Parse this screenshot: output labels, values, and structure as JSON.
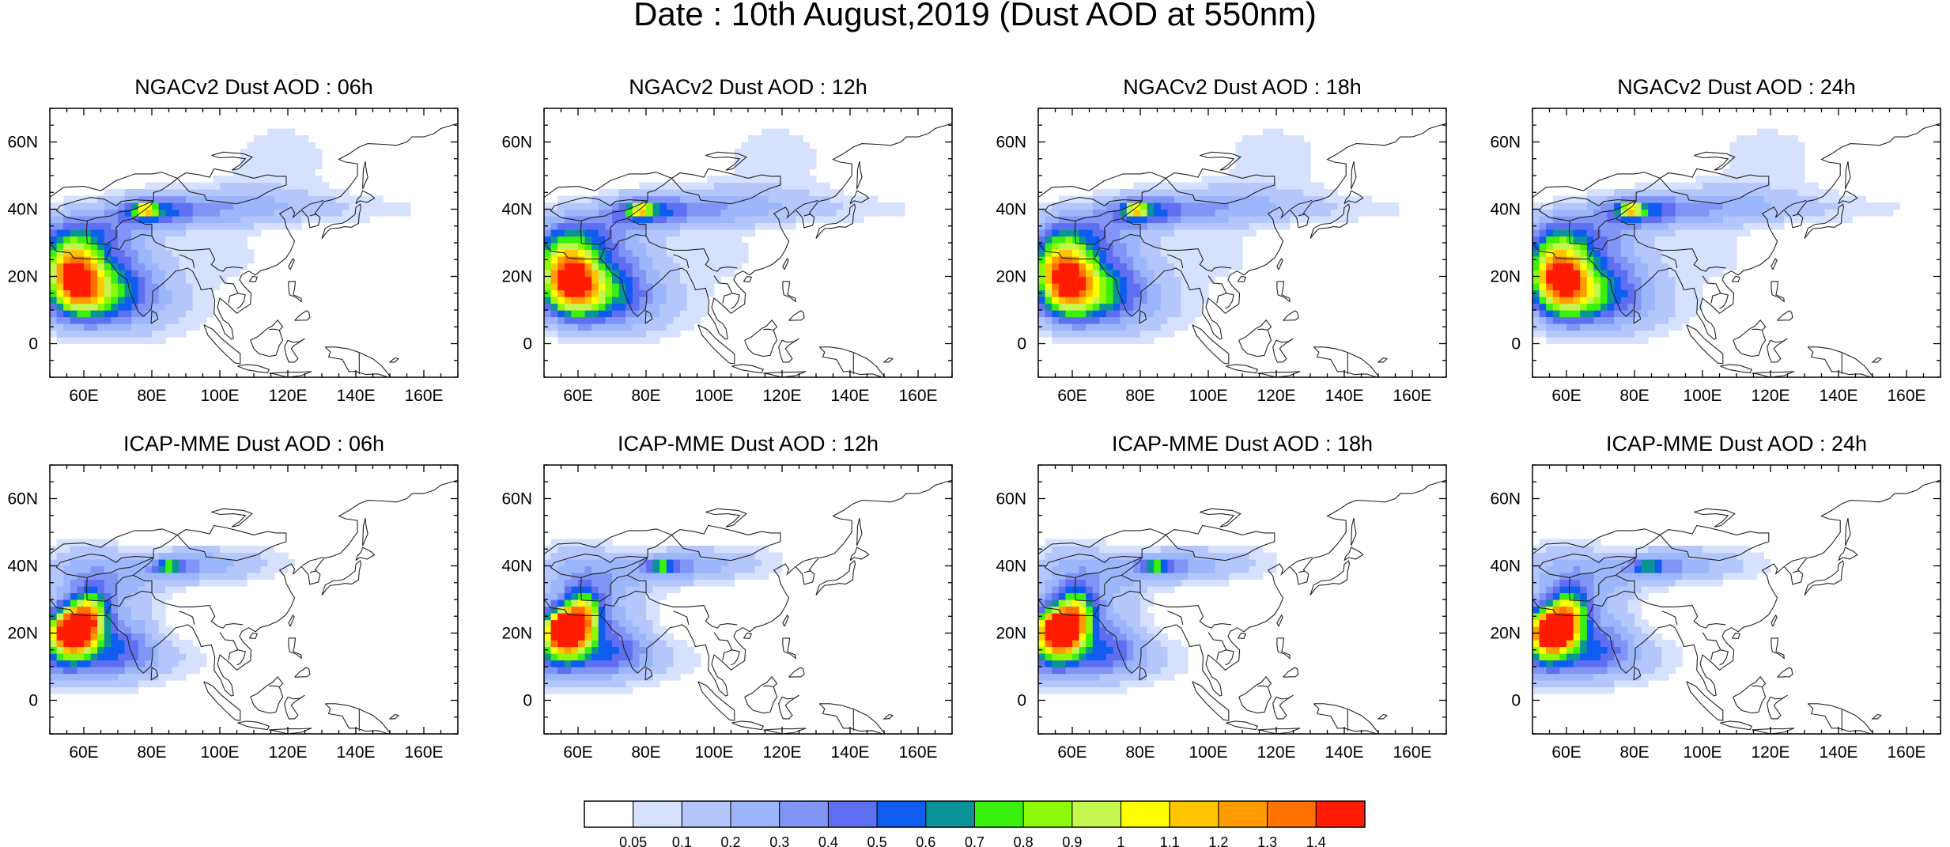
{
  "figure": {
    "title": "Date : 10th August,2019 (Dust AOD at 550nm)"
  },
  "axes": {
    "lon_ticks": [
      "60E",
      "80E",
      "100E",
      "120E",
      "140E",
      "160E"
    ],
    "lat_ticks": [
      "60N",
      "40N",
      "20N",
      "0"
    ],
    "lon_range": [
      50,
      170
    ],
    "lat_range": [
      -10,
      70
    ]
  },
  "panels": [
    {
      "title": "NGACv2 Dust AOD : 06h",
      "model": "NGACv2",
      "hour": 6
    },
    {
      "title": "NGACv2 Dust AOD : 12h",
      "model": "NGACv2",
      "hour": 12
    },
    {
      "title": "NGACv2 Dust AOD : 18h",
      "model": "NGACv2",
      "hour": 18
    },
    {
      "title": "NGACv2 Dust AOD : 24h",
      "model": "NGACv2",
      "hour": 24
    },
    {
      "title": "ICAP-MME Dust AOD : 06h",
      "model": "ICAP-MME",
      "hour": 6
    },
    {
      "title": "ICAP-MME Dust AOD : 12h",
      "model": "ICAP-MME",
      "hour": 12
    },
    {
      "title": "ICAP-MME Dust AOD : 18h",
      "model": "ICAP-MME",
      "hour": 18
    },
    {
      "title": "ICAP-MME Dust AOD : 24h",
      "model": "ICAP-MME",
      "hour": 24
    }
  ],
  "colorbar": {
    "labels": [
      "0.05",
      "0.1",
      "0.2",
      "0.3",
      "0.4",
      "0.5",
      "0.6",
      "0.7",
      "0.8",
      "0.9",
      "1",
      "1.1",
      "1.2",
      "1.3",
      "1.4"
    ],
    "colors": [
      "#ffffff",
      "#d6e2fd",
      "#b4c7fc",
      "#9cb6fb",
      "#8195f7",
      "#5f6ff1",
      "#0e5df0",
      "#0b9497",
      "#39f10f",
      "#8df908",
      "#c5f64e",
      "#ffff00",
      "#ffc600",
      "#ff9c00",
      "#ff7100",
      "#ff1c00"
    ]
  }
}
